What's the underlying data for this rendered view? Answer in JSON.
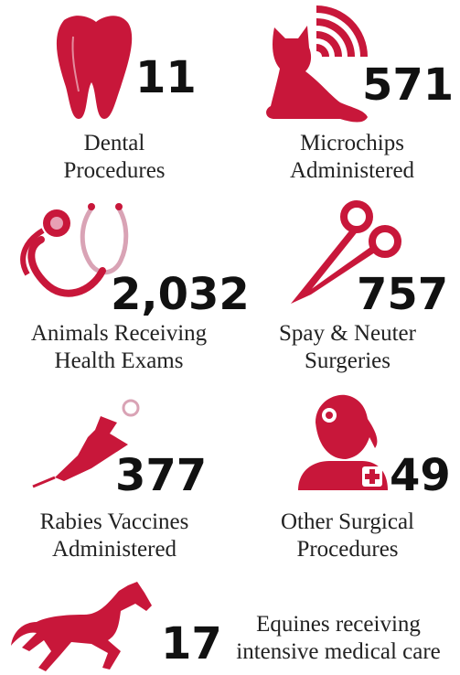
{
  "items": [
    {
      "number": "11",
      "label": [
        "Dental",
        "Procedures"
      ]
    },
    {
      "number": "571",
      "label": [
        "Microchips",
        "Administered"
      ]
    },
    {
      "number": "2,032",
      "label": [
        "Animals Receiving",
        "Health Exams"
      ]
    },
    {
      "number": "757",
      "label": [
        "Spay & Neuter",
        "Surgeries"
      ]
    },
    {
      "number": "377",
      "label": [
        "Rabies Vaccines",
        "Administered"
      ]
    },
    {
      "number": "49",
      "label": [
        "Other Surgical",
        "Procedures"
      ]
    },
    {
      "number": "17",
      "label": [
        "Equines receiving",
        "intensive medical care"
      ]
    }
  ]
}
